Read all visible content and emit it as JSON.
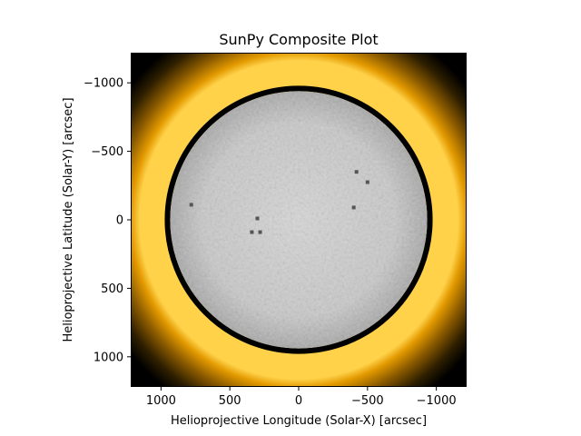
{
  "chart_data": {
    "type": "heatmap",
    "title": "SunPy Composite Plot",
    "xlabel": "Helioprojective Longitude (Solar-X) [arcsec]",
    "ylabel": "Helioprojective Latitude (Solar-Y) [arcsec]",
    "xlim": [
      1220,
      -1220
    ],
    "ylim": [
      1220,
      -1220
    ],
    "x_ticks": [
      1000,
      500,
      0,
      -500,
      -1000
    ],
    "y_ticks": [
      -1000,
      -500,
      0,
      500,
      1000
    ],
    "x_tick_labels": [
      "1000",
      "500",
      "0",
      "−500",
      "−1000"
    ],
    "y_tick_labels": [
      "−1000",
      "−500",
      "0",
      "500",
      "1000"
    ],
    "layers": [
      {
        "kind": "grayscale-disk",
        "colormap": "gray",
        "radius": 960
      },
      {
        "kind": "corona-glow",
        "color": "#f2a800",
        "inner_radius": 960,
        "outer_radius": 1220
      }
    ],
    "grid": false
  }
}
